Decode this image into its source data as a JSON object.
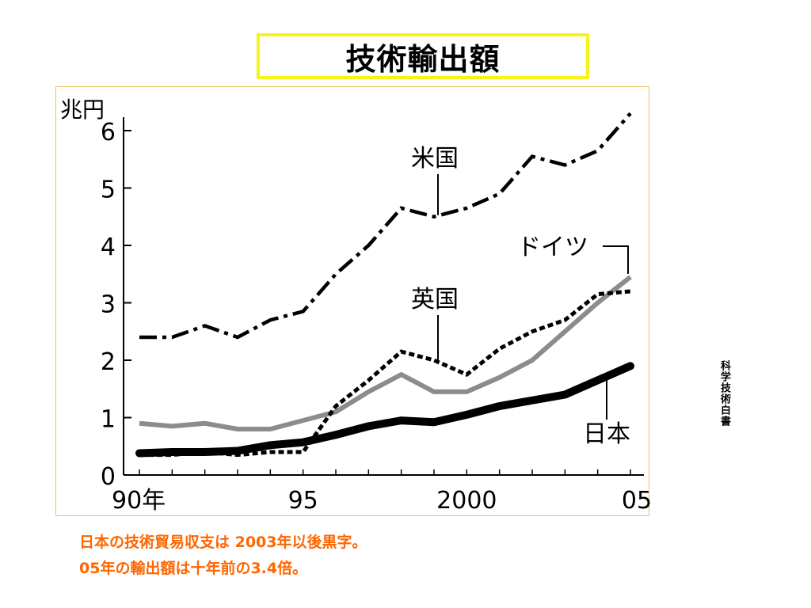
{
  "slide": {
    "title": "技術輸出額",
    "source": "科学技術白書",
    "caption_line1": "日本の技術貿易収支は 2003年以後黒字。",
    "caption_line2": "05年の輸出額は十年前の3.4倍。"
  },
  "chart_data": {
    "type": "line",
    "title": "技術輸出額",
    "ylabel": "兆円",
    "xlabel": "",
    "ylim": [
      0,
      6.5
    ],
    "yticks": [
      0,
      1,
      2,
      3,
      4,
      5,
      6
    ],
    "xlim": [
      1990,
      2005
    ],
    "x_tick_values": [
      1990,
      1995,
      2000,
      2005
    ],
    "x_tick_labels": [
      "90年",
      "95",
      "2000",
      "05"
    ],
    "grid": false,
    "x": [
      1990,
      1991,
      1992,
      1993,
      1994,
      1995,
      1996,
      1997,
      1998,
      1999,
      2000,
      2001,
      2002,
      2003,
      2004,
      2005
    ],
    "series": [
      {
        "name": "米国",
        "color": "#000000",
        "style": "dashdot",
        "values": [
          2.4,
          2.4,
          2.6,
          2.4,
          2.7,
          2.85,
          3.5,
          4.0,
          4.65,
          4.5,
          4.65,
          4.9,
          5.55,
          5.4,
          5.65,
          6.3
        ]
      },
      {
        "name": "ドイツ",
        "color": "#888888",
        "style": "gray",
        "values": [
          0.9,
          0.85,
          0.9,
          0.8,
          0.8,
          0.95,
          1.1,
          1.45,
          1.75,
          1.45,
          1.45,
          1.7,
          2.0,
          2.5,
          3.0,
          3.45
        ]
      },
      {
        "name": "英国",
        "color": "#000000",
        "style": "dotted",
        "values": [
          0.35,
          0.35,
          0.4,
          0.35,
          0.4,
          0.4,
          1.2,
          1.65,
          2.15,
          2.0,
          1.75,
          2.2,
          2.5,
          2.7,
          3.15,
          3.2
        ]
      },
      {
        "name": "日本",
        "color": "#000000",
        "style": "thick",
        "values": [
          0.38,
          0.4,
          0.4,
          0.42,
          0.52,
          0.57,
          0.7,
          0.85,
          0.95,
          0.92,
          1.05,
          1.2,
          1.3,
          1.4,
          1.65,
          1.9
        ]
      }
    ]
  }
}
